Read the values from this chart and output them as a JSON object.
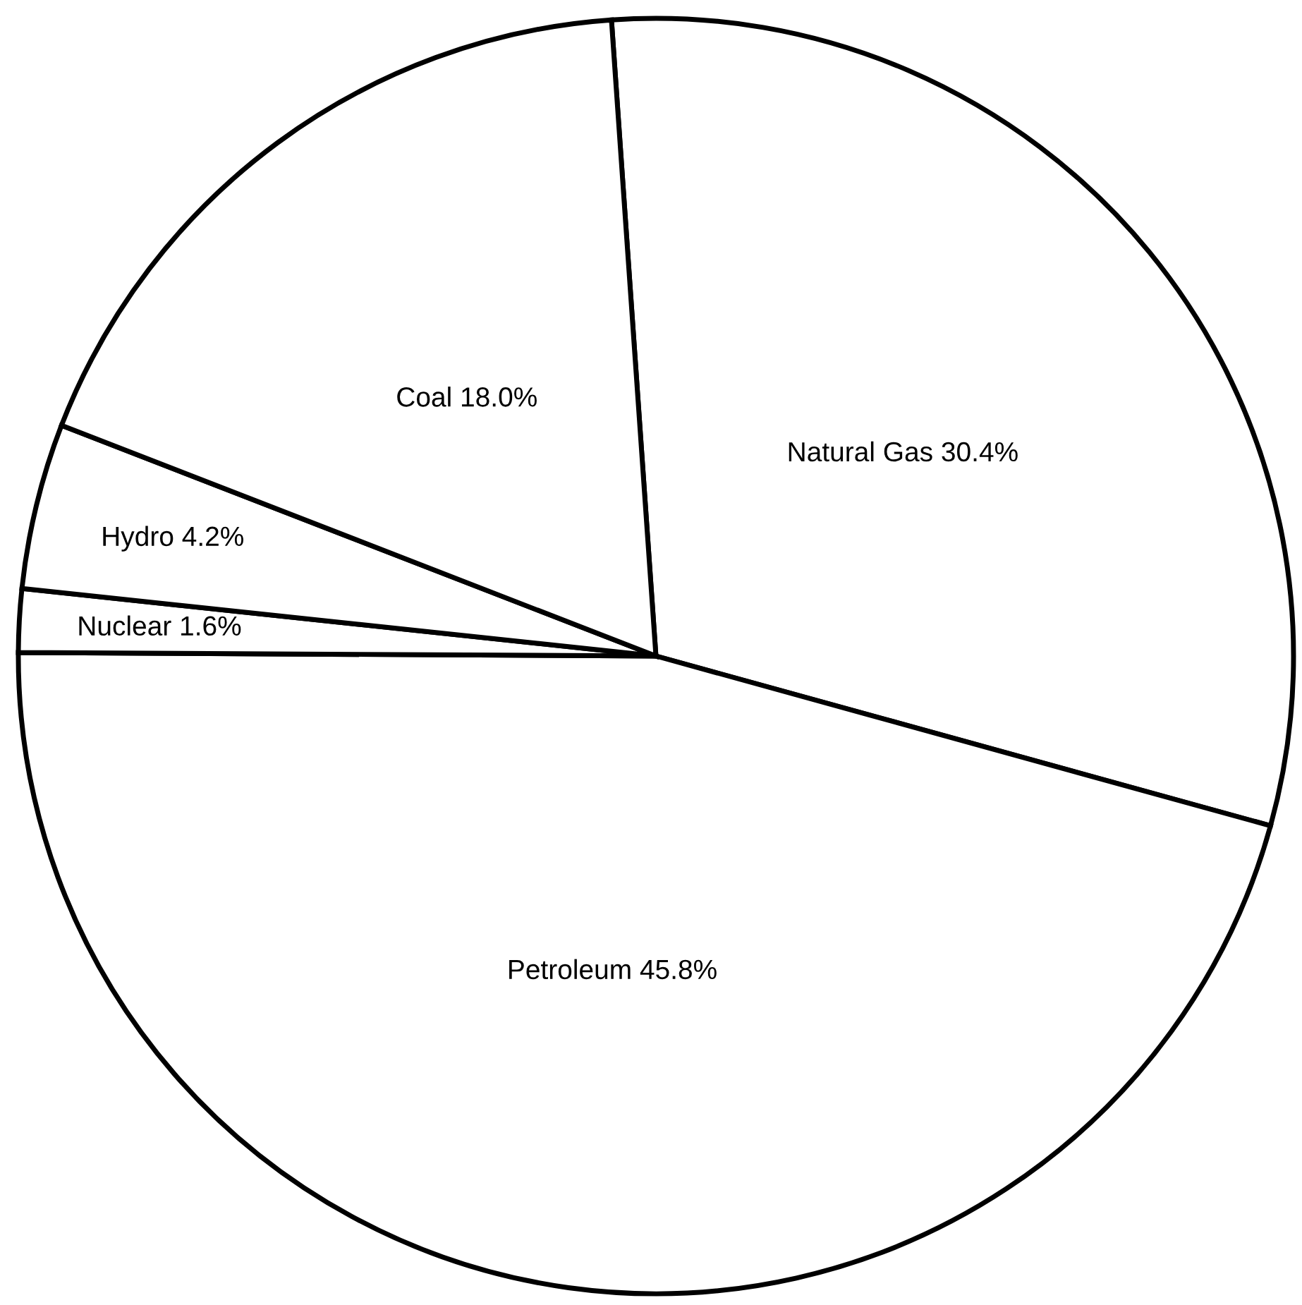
{
  "chart_data": {
    "type": "pie",
    "categories": [
      "Natural Gas",
      "Petroleum",
      "Nuclear",
      "Hydro",
      "Coal"
    ],
    "values": [
      30.4,
      45.8,
      1.6,
      4.2,
      18.0
    ],
    "value_labels": [
      "30.4%",
      "45.8%",
      "1.6%",
      "4.2%",
      "18.0%"
    ],
    "colors": [
      "#ffffff",
      "#ffffff",
      "#ffffff",
      "#ffffff",
      "#ffffff"
    ]
  }
}
